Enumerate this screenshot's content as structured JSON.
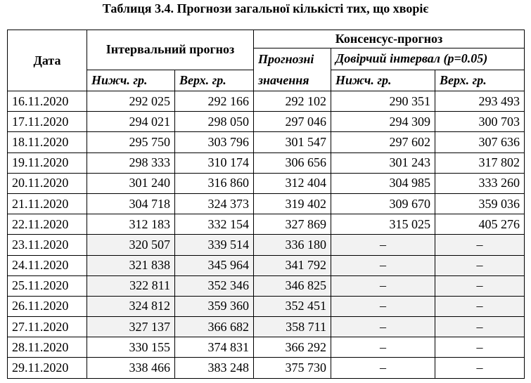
{
  "title": "Таблиця 3.4. Прогнози загальної кількісті тих, що хворіє",
  "header": {
    "date": "Дата",
    "interval": "Інтервальний прогноз",
    "consensus": "Консенсус-прогноз",
    "forecast_line1": "Прогнозні",
    "forecast_line2": "значення",
    "confidence": "Довірчий інтервал (p=0.05)",
    "lower": "Нижч. гр.",
    "upper": "Верх. гр.",
    "ci_lower": "Нижч. гр.",
    "ci_upper": "Верх. гр."
  },
  "table": {
    "rows": [
      [
        "16.11.2020",
        "292 025",
        "292 166",
        "292 102",
        "290 351",
        "293 493"
      ],
      [
        "17.11.2020",
        "294 021",
        "298 050",
        "297 046",
        "294 309",
        "300 703"
      ],
      [
        "18.11.2020",
        "295 750",
        "303 796",
        "301 547",
        "297 602",
        "307 636"
      ],
      [
        "19.11.2020",
        "298 333",
        "310 174",
        "306 656",
        "301 243",
        "317 802"
      ],
      [
        "20.11.2020",
        "301 240",
        "316 860",
        "312 404",
        "304 985",
        "333 260"
      ],
      [
        "21.11.2020",
        "304 718",
        "324 373",
        "319 402",
        "309 670",
        "359 036"
      ],
      [
        "22.11.2020",
        "312 183",
        "332 154",
        "327 869",
        "315 025",
        "405 276"
      ],
      [
        "23.11.2020",
        "320 507",
        "339 514",
        "336 180",
        "–",
        "–"
      ],
      [
        "24.11.2020",
        "321 838",
        "345 964",
        "341 792",
        "–",
        "–"
      ],
      [
        "25.11.2020",
        "322 811",
        "352 346",
        "346 825",
        "–",
        "–"
      ],
      [
        "26.11.2020",
        "324 812",
        "359 360",
        "352 451",
        "–",
        "–"
      ],
      [
        "27.11.2020",
        "327 137",
        "366 682",
        "358 711",
        "–",
        "–"
      ],
      [
        "28.11.2020",
        "330 155",
        "374 831",
        "366 292",
        "–",
        "–"
      ],
      [
        "29.11.2020",
        "338 466",
        "383 248",
        "375 730",
        "–",
        "–"
      ]
    ]
  }
}
